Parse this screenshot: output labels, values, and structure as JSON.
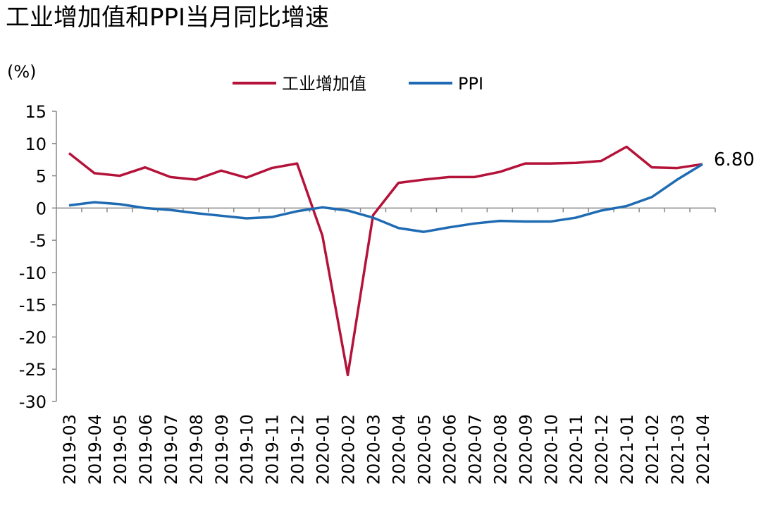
{
  "chart_data": {
    "type": "line",
    "title": "工业增加值和PPI当月同比增速",
    "y_label": "(%)",
    "categories": [
      "2019-03",
      "2019-04",
      "2019-05",
      "2019-06",
      "2019-07",
      "2019-08",
      "2019-09",
      "2019-10",
      "2019-11",
      "2019-12",
      "2020-01",
      "2020-02",
      "2020-03",
      "2020-04",
      "2020-05",
      "2020-06",
      "2020-07",
      "2020-08",
      "2020-09",
      "2020-10",
      "2020-11",
      "2020-12",
      "2021-01",
      "2021-02",
      "2021-03",
      "2021-04"
    ],
    "series": [
      {
        "name": "工业增加值",
        "color": "#b5123a",
        "values": [
          8.5,
          5.4,
          5.0,
          6.3,
          4.8,
          4.4,
          5.8,
          4.7,
          6.2,
          6.9,
          -4.3,
          -25.9,
          -1.1,
          3.9,
          4.4,
          4.8,
          4.8,
          5.6,
          6.9,
          6.9,
          7.0,
          7.3,
          9.5,
          6.3,
          6.2,
          6.8
        ],
        "value_labels": [
          null,
          null,
          null,
          null,
          null,
          null,
          null,
          null,
          null,
          null,
          null,
          null,
          null,
          null,
          null,
          null,
          null,
          null,
          null,
          null,
          null,
          null,
          null,
          null,
          null,
          "6.80"
        ]
      },
      {
        "name": "PPI",
        "color": "#1f6bb3",
        "values": [
          0.4,
          0.9,
          0.6,
          0.0,
          -0.3,
          -0.8,
          -1.2,
          -1.6,
          -1.4,
          -0.5,
          0.1,
          -0.4,
          -1.5,
          -3.1,
          -3.7,
          -3.0,
          -2.4,
          -2.0,
          -2.1,
          -2.1,
          -1.5,
          -0.4,
          0.3,
          1.7,
          4.4,
          6.8
        ]
      }
    ],
    "ylim": [
      -30,
      15
    ],
    "yticks": [
      -30,
      -25,
      -20,
      -15,
      -10,
      -5,
      0,
      5,
      10,
      15
    ],
    "legend": "top",
    "grid": false
  }
}
